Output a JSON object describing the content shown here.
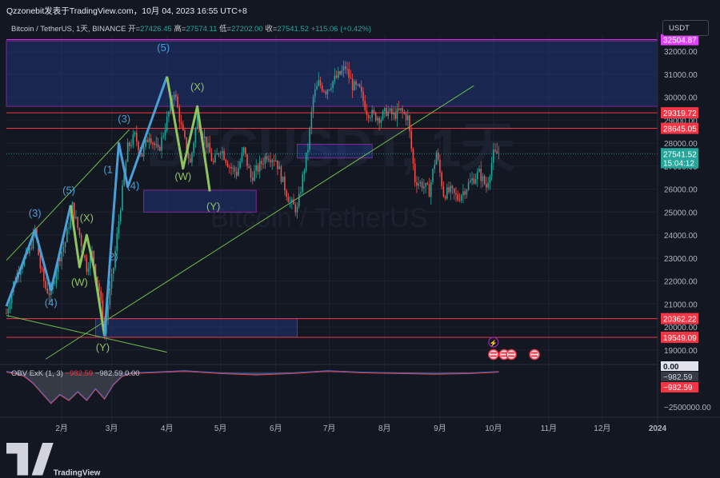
{
  "header": {
    "title": "Qzzonebit发表于TradingView.com，10月 04, 2023 16:55 UTC+8"
  },
  "symbol_line": {
    "symbol": "Bitcoin / TetherUS, 1天, BINANCE",
    "open_label": "开=",
    "open": "27426.45",
    "high_label": "高=",
    "high": "27574.11",
    "low_label": "低=",
    "low": "27202.00",
    "close_label": "收=",
    "close": "27541.52",
    "change": "+115.06 (+0.42%)"
  },
  "currency_button": "USDT",
  "watermark": {
    "big": "BTCUSDT, 1天",
    "sub": "Bitcoin / TetherUS"
  },
  "obv_line": {
    "name": "OBV ExK (1, 3)",
    "v1": "−982.59",
    "v2": "−982.59",
    "v3": "0.00"
  },
  "logo_text": "TradingView",
  "colors": {
    "background": "#131722",
    "up": "#26a69a",
    "down": "#ef5350",
    "wave_blue": "#4a9fd8",
    "wave_green": "#8fc460",
    "level_red": "#f23645",
    "zone_blue": "#1f3a8a",
    "trend_green": "#6fbf4a"
  },
  "chart_data": {
    "type": "line",
    "title": "Bitcoin / TetherUS, 1天, BINANCE",
    "y_axis_ticks": [
      32000,
      31000,
      30000,
      29000,
      28000,
      27000,
      26000,
      25000,
      24000,
      23000,
      22000,
      21000,
      20000,
      19000
    ],
    "ylim": [
      18400,
      32700
    ],
    "x_ticks": [
      "2月",
      "3月",
      "4月",
      "5月",
      "6月",
      "7月",
      "8月",
      "9月",
      "10月",
      "11月",
      "12月",
      "2024"
    ],
    "x_tick_day": [
      31,
      59,
      90,
      120,
      151,
      181,
      212,
      243,
      273,
      304,
      334,
      365
    ],
    "price_labels": [
      {
        "text": "32504.87",
        "value": 32504.87,
        "color": "#e040fb"
      },
      {
        "text": "29319.72",
        "value": 29319.72,
        "color": "#f23645"
      },
      {
        "text": "28645.05",
        "value": 28645.05,
        "color": "#f23645"
      },
      {
        "text": "27541.52",
        "value": 27541.52,
        "color": "#26a69a"
      },
      {
        "text": "15:04:12",
        "value": 27150,
        "color": "#26a69a"
      },
      {
        "text": "20362.22",
        "value": 20362.22,
        "color": "#f23645"
      },
      {
        "text": "19549.09",
        "value": 19549.09,
        "color": "#f23645"
      }
    ],
    "horizontal_levels": [
      32504.87,
      29319.72,
      28645.05,
      20362.22,
      19549.09
    ],
    "zones": [
      {
        "day1": 0,
        "day2": 365,
        "y1": 29600,
        "y2": 32450,
        "color": "#1f3a8a"
      },
      {
        "day1": 77,
        "day2": 140,
        "y1": 25000,
        "y2": 25950,
        "color": "#1f3a8a"
      },
      {
        "day1": 163,
        "day2": 205,
        "y1": 27350,
        "y2": 27950,
        "color": "#1f3a8a"
      },
      {
        "day1": 50,
        "day2": 163,
        "y1": 19549.09,
        "y2": 20362.22,
        "color": "#1f3a8a"
      }
    ],
    "price_path": [
      [
        0,
        20600
      ],
      [
        4,
        21900
      ],
      [
        8,
        22700
      ],
      [
        13,
        23300
      ],
      [
        16,
        24250
      ],
      [
        19,
        22600
      ],
      [
        22,
        21700
      ],
      [
        25,
        21400
      ],
      [
        29,
        22900
      ],
      [
        33,
        23700
      ],
      [
        37,
        25250
      ],
      [
        41,
        24000
      ],
      [
        45,
        22600
      ],
      [
        48,
        23200
      ],
      [
        52,
        21600
      ],
      [
        55,
        19700
      ],
      [
        57,
        21000
      ],
      [
        60,
        22600
      ],
      [
        64,
        25300
      ],
      [
        68,
        27800
      ],
      [
        72,
        28300
      ],
      [
        76,
        27500
      ],
      [
        80,
        28400
      ],
      [
        85,
        27600
      ],
      [
        90,
        29000
      ],
      [
        94,
        30300
      ],
      [
        98,
        28700
      ],
      [
        103,
        27100
      ],
      [
        107,
        29100
      ],
      [
        111,
        28200
      ],
      [
        116,
        27100
      ],
      [
        120,
        27800
      ],
      [
        125,
        27000
      ],
      [
        129,
        26700
      ],
      [
        133,
        27700
      ],
      [
        137,
        26500
      ],
      [
        141,
        26900
      ],
      [
        146,
        27500
      ],
      [
        151,
        27300
      ],
      [
        155,
        26300
      ],
      [
        159,
        25400
      ],
      [
        163,
        25100
      ],
      [
        166,
        26500
      ],
      [
        169,
        27800
      ],
      [
        172,
        30000
      ],
      [
        175,
        30600
      ],
      [
        179,
        30300
      ],
      [
        183,
        30700
      ],
      [
        187,
        31000
      ],
      [
        190,
        31300
      ],
      [
        194,
        30500
      ],
      [
        198,
        30300
      ],
      [
        202,
        29400
      ],
      [
        206,
        29200
      ],
      [
        210,
        29100
      ],
      [
        213,
        29400
      ],
      [
        217,
        29200
      ],
      [
        221,
        29400
      ],
      [
        225,
        29100
      ],
      [
        229,
        26400
      ],
      [
        233,
        26200
      ],
      [
        237,
        25900
      ],
      [
        241,
        27600
      ],
      [
        245,
        25800
      ],
      [
        249,
        25900
      ],
      [
        253,
        25600
      ],
      [
        257,
        26000
      ],
      [
        261,
        26400
      ],
      [
        265,
        26700
      ],
      [
        269,
        26100
      ],
      [
        273,
        27500
      ],
      [
        276,
        27541.52
      ]
    ],
    "trendlines": [
      {
        "d1": 0,
        "p1": 22900,
        "d2": 69,
        "p2": 28600,
        "color": "#6fbf4a"
      },
      {
        "d1": 22,
        "p1": 18600,
        "d2": 262,
        "p2": 30500,
        "color": "#6fbf4a"
      },
      {
        "d1": 0,
        "p1": 20500,
        "d2": 90,
        "p2": 18900,
        "color": "#6fbf4a"
      }
    ],
    "waves": [
      {
        "name": "blue-1",
        "color": "#4a9fd8",
        "points": [
          [
            0,
            20900
          ],
          [
            16,
            24200
          ],
          [
            25,
            21600
          ],
          [
            36,
            25300
          ]
        ]
      },
      {
        "name": "green-1",
        "color": "#8fc460",
        "points": [
          [
            36,
            25300
          ],
          [
            41,
            22600
          ],
          [
            45,
            24000
          ],
          [
            49,
            22600
          ],
          [
            55,
            19600
          ]
        ]
      },
      {
        "name": "blue-2",
        "color": "#4a9fd8",
        "points": [
          [
            55,
            19600
          ],
          [
            59,
            23900
          ],
          [
            63,
            28000
          ],
          [
            68,
            26100
          ],
          [
            90,
            30900
          ]
        ]
      },
      {
        "name": "green-2",
        "color": "#8fc460",
        "points": [
          [
            90,
            30900
          ],
          [
            99,
            26900
          ],
          [
            107,
            29600
          ],
          [
            114,
            25900
          ]
        ]
      }
    ],
    "wave_labels": [
      {
        "text": "(3)",
        "day": 16,
        "price": 24800,
        "color": "#4a9fd8"
      },
      {
        "text": "(4)",
        "day": 25,
        "price": 20900,
        "color": "#4a9fd8"
      },
      {
        "text": "(5)",
        "day": 35,
        "price": 25800,
        "color": "#4a9fd8"
      },
      {
        "text": "(X)",
        "day": 45,
        "price": 24600,
        "color": "#8fc460"
      },
      {
        "text": "(W)",
        "day": 41,
        "price": 21800,
        "color": "#8fc460"
      },
      {
        "text": "(Y)",
        "day": 54,
        "price": 18950,
        "color": "#8fc460"
      },
      {
        "text": "2)",
        "day": 60,
        "price": 22900,
        "color": "#4a9fd8"
      },
      {
        "text": "(1",
        "day": 57,
        "price": 26700,
        "color": "#4a9fd8"
      },
      {
        "text": "(3)",
        "day": 66,
        "price": 28900,
        "color": "#4a9fd8"
      },
      {
        "text": "(4)",
        "day": 71,
        "price": 26000,
        "color": "#4a9fd8"
      },
      {
        "text": "(5)",
        "day": 88,
        "price": 32000,
        "color": "#4a9fd8"
      },
      {
        "text": "(X)",
        "day": 107,
        "price": 30300,
        "color": "#8fc460"
      },
      {
        "text": "(W)",
        "day": 99,
        "price": 26400,
        "color": "#8fc460"
      },
      {
        "text": "(Y)",
        "day": 116,
        "price": 25100,
        "color": "#8fc460"
      }
    ],
    "obv": {
      "label": "OBV ExK (1, 3)",
      "ticks": [
        "0.00",
        "−982.59",
        "−2500000.00"
      ],
      "path": [
        [
          0,
          0
        ],
        [
          5,
          -100000
        ],
        [
          10,
          -300000
        ],
        [
          15,
          -800000
        ],
        [
          20,
          -1500000
        ],
        [
          25,
          -2200000
        ],
        [
          30,
          -1600000
        ],
        [
          35,
          -2000000
        ],
        [
          40,
          -1400000
        ],
        [
          45,
          -2000000
        ],
        [
          50,
          -1200000
        ],
        [
          55,
          -1900000
        ],
        [
          60,
          -900000
        ],
        [
          65,
          -300000
        ],
        [
          70,
          -100000
        ],
        [
          80,
          -50000
        ],
        [
          100,
          50000
        ],
        [
          120,
          -100000
        ],
        [
          140,
          -200000
        ],
        [
          160,
          -100000
        ],
        [
          180,
          50000
        ],
        [
          200,
          -50000
        ],
        [
          220,
          -100000
        ],
        [
          240,
          -150000
        ],
        [
          260,
          -100000
        ],
        [
          276,
          -982.59
        ]
      ]
    }
  }
}
